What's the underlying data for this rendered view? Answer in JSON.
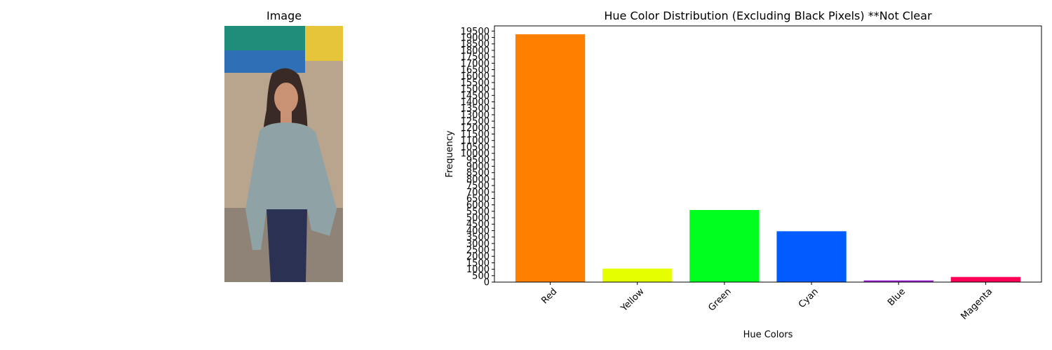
{
  "left_panel": {
    "title": "Image"
  },
  "photo": {
    "colors": {
      "bg_top": "#1f8d7a",
      "awning": "#2f6fb5",
      "yellow_tarp": "#e7c53a",
      "wall": "#b9a58e",
      "ground": "#8f8378",
      "hair": "#3a2a26",
      "skin": "#c99274",
      "top": "#8fa3a6",
      "jeans": "#2b3152"
    }
  },
  "chart_data": {
    "type": "bar",
    "title": "Hue Color Distribution (Excluding Black Pixels) **Not Clear",
    "xlabel": "Hue Colors",
    "ylabel": "Frequency",
    "categories": [
      "Red",
      "Yellow",
      "Green",
      "Cyan",
      "Blue",
      "Magenta"
    ],
    "values": [
      19250,
      1050,
      5600,
      3950,
      130,
      400
    ],
    "colors": [
      "#ff7f00",
      "#e6ff00",
      "#00ff1f",
      "#005cff",
      "#9a1fd6",
      "#ff0057"
    ],
    "ylim": [
      0,
      19900
    ],
    "yticks": [
      0,
      500,
      1000,
      1500,
      2000,
      2500,
      3000,
      3500,
      4000,
      4500,
      5000,
      5500,
      6000,
      6500,
      7000,
      7500,
      8000,
      8500,
      9000,
      9500,
      10000,
      10500,
      11000,
      11500,
      12000,
      12500,
      13000,
      13500,
      14000,
      14500,
      15000,
      15500,
      16000,
      16500,
      17000,
      17500,
      18000,
      18500,
      19000,
      19500
    ],
    "xtick_rotation": 45,
    "grid": false
  }
}
